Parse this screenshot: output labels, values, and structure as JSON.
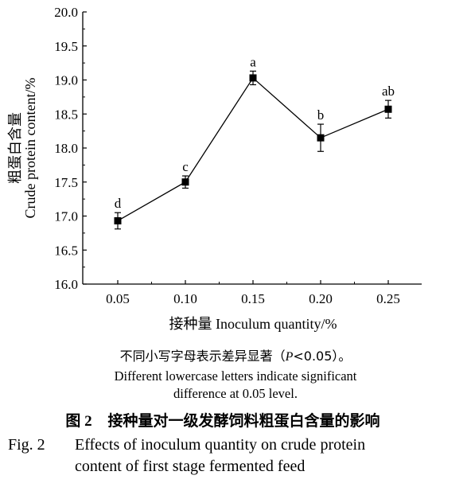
{
  "chart_data": {
    "type": "line",
    "x": [
      "0.05",
      "0.10",
      "0.15",
      "0.20",
      "0.25"
    ],
    "values": [
      16.93,
      17.5,
      19.03,
      18.15,
      18.57
    ],
    "errors": [
      0.12,
      0.09,
      0.1,
      0.2,
      0.13
    ],
    "significance_letters": [
      "d",
      "c",
      "a",
      "b",
      "ab"
    ],
    "ylim": [
      16.0,
      20.0
    ],
    "yticks": [
      "16.0",
      "16.5",
      "17.0",
      "17.5",
      "18.0",
      "18.5",
      "19.0",
      "19.5",
      "20.0"
    ],
    "ylabel_cn": "粗蛋白含量",
    "ylabel_en": "Crude protein content/%",
    "xlabel": "接种量 Inoculum quantity/%",
    "marker": "square",
    "grid": false
  },
  "note": {
    "cn_before": "不同小写字母表示差异显著（",
    "cn_p": "P",
    "cn_after": "<0.05）。",
    "en_line1": "Different lowercase letters indicate significant",
    "en_line2": "difference at 0.05 level."
  },
  "caption": {
    "cn_fig": "图 2",
    "cn_title": "接种量对一级发酵饲料粗蛋白含量的影响",
    "en_fig": "Fig. 2",
    "en_line1": "Effects of inoculum quantity on crude protein",
    "en_line2": "content of first stage fermented feed"
  }
}
